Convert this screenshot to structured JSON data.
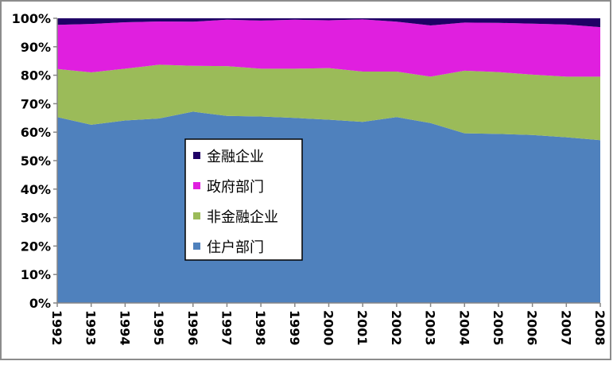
{
  "chart_data": {
    "type": "area",
    "stacked": "percent",
    "title": "",
    "xlabel": "",
    "ylabel": "",
    "ylim": [
      0,
      100
    ],
    "yticks": [
      "0%",
      "10%",
      "20%",
      "30%",
      "40%",
      "50%",
      "60%",
      "70%",
      "80%",
      "90%",
      "100%"
    ],
    "categories": [
      "1992",
      "1993",
      "1994",
      "1995",
      "1996",
      "1997",
      "1998",
      "1999",
      "2000",
      "2001",
      "2002",
      "2003",
      "2004",
      "2005",
      "2006",
      "2007",
      "2008"
    ],
    "legend_position": "center-left",
    "series": [
      {
        "name": "住户部门",
        "color": "#4F81BD",
        "values": [
          65.3,
          62.6,
          64.1,
          64.8,
          67.2,
          65.7,
          65.5,
          65.0,
          64.4,
          63.6,
          65.3,
          63.2,
          59.6,
          59.4,
          59.0,
          58.2,
          57.2
        ]
      },
      {
        "name": "非金融企业",
        "color": "#9BBB59",
        "values": [
          16.9,
          18.4,
          18.2,
          18.9,
          16.1,
          17.5,
          16.8,
          17.3,
          18.1,
          17.7,
          16.0,
          16.3,
          22.0,
          21.7,
          21.2,
          21.3,
          22.3
        ]
      },
      {
        "name": "政府部门",
        "color": "#E01FDF",
        "values": [
          15.5,
          17.0,
          16.3,
          15.2,
          15.5,
          16.3,
          16.9,
          17.2,
          16.8,
          18.3,
          17.5,
          18.0,
          16.9,
          17.3,
          17.9,
          18.3,
          17.4
        ]
      },
      {
        "name": "金融企业",
        "color": "#1F0066",
        "values": [
          2.3,
          2.0,
          1.4,
          1.1,
          1.2,
          0.5,
          0.8,
          0.5,
          0.7,
          0.4,
          1.2,
          2.5,
          1.5,
          1.6,
          1.9,
          2.2,
          3.1
        ]
      }
    ],
    "legend_order": [
      "金融企业",
      "政府部门",
      "非金融企业",
      "住户部门"
    ]
  }
}
